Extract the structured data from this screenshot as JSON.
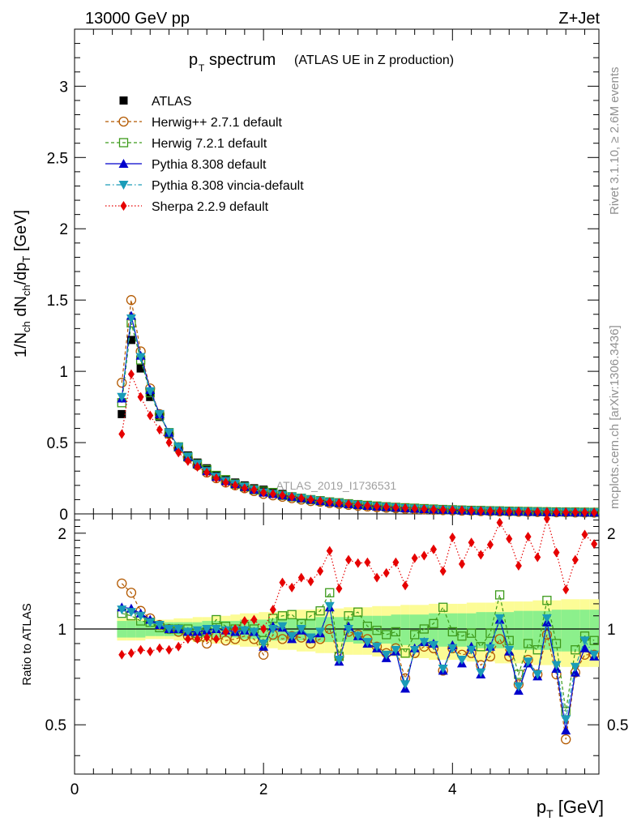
{
  "header": {
    "energy": "13000 GeV pp",
    "process": "Z+Jet"
  },
  "side": {
    "rivet": "Rivet 3.1.10, ≥ 2.6M events",
    "mcplots": "mcplots.cern.ch [arXiv:1306.3436]"
  },
  "watermark": "ATLAS_2019_I1736531",
  "colors": {
    "ATLAS": "#000000",
    "Herwig++ 2.7.1 default": "#b35900",
    "Herwig 7.2.1 default": "#3c9a1a",
    "Pythia 8.308 default": "#0000cc",
    "Pythia 8.308 vincia-default": "#1a9cb8",
    "Sherpa 2.2.9 default": "#e60000",
    "band_inner": "#8cf08c",
    "band_outer": "#fcfc96"
  },
  "chart_data": [
    {
      "type": "scatter",
      "title_main": "p",
      "title_sub": "T",
      "title_rest": "spectrum",
      "title_note": "(ATLAS UE in Z production)",
      "ylabel": "1/N_ch dN_ch/dp_T [GeV]",
      "xlim": [
        0,
        5.55
      ],
      "ylim": [
        0,
        3.4
      ],
      "yticks": [
        "0",
        "0.5",
        "1",
        "1.5",
        "2",
        "2.5",
        "3"
      ],
      "legend_position": "top-left",
      "x": [
        0.5,
        0.6,
        0.7,
        0.8,
        0.9,
        1.0,
        1.1,
        1.2,
        1.3,
        1.4,
        1.5,
        1.6,
        1.7,
        1.8,
        1.9,
        2.0,
        2.1,
        2.2,
        2.3,
        2.4,
        2.5,
        2.6,
        2.7,
        2.8,
        2.9,
        3.0,
        3.1,
        3.2,
        3.3,
        3.4,
        3.5,
        3.6,
        3.7,
        3.8,
        3.9,
        4.0,
        4.1,
        4.2,
        4.3,
        4.4,
        4.5,
        4.6,
        4.7,
        4.8,
        4.9,
        5.0,
        5.1,
        5.2,
        5.3,
        5.4,
        5.5
      ],
      "series": [
        {
          "name": "ATLAS",
          "marker": "square",
          "values": [
            0.7,
            1.22,
            1.02,
            0.82,
            0.68,
            0.56,
            0.47,
            0.41,
            0.36,
            0.32,
            0.27,
            0.24,
            0.22,
            0.2,
            0.18,
            0.17,
            0.15,
            0.14,
            0.12,
            0.11,
            0.1,
            0.095,
            0.085,
            0.08,
            0.072,
            0.065,
            0.06,
            0.055,
            0.05,
            0.047,
            0.043,
            0.04,
            0.037,
            0.034,
            0.032,
            0.03,
            0.028,
            0.026,
            0.024,
            0.023,
            0.021,
            0.02,
            0.019,
            0.018,
            0.017,
            0.016,
            0.015,
            0.014,
            0.013,
            0.012,
            0.012
          ]
        },
        {
          "name": "Herwig++ 2.7.1 default",
          "marker": "circle-open",
          "line": "dashed",
          "values": [
            0.92,
            1.5,
            1.14,
            0.88,
            0.7,
            0.56,
            0.46,
            0.39,
            0.34,
            0.29,
            0.25,
            0.22,
            0.2,
            0.18,
            0.16,
            0.14,
            0.13,
            0.12,
            0.11,
            0.1,
            0.09,
            0.085,
            0.076,
            0.07,
            0.063,
            0.057,
            0.052,
            0.047,
            0.043,
            0.04,
            0.036,
            0.033,
            0.031,
            0.028,
            0.026,
            0.024,
            0.022,
            0.021,
            0.019,
            0.018,
            0.017,
            0.016,
            0.015,
            0.014,
            0.013,
            0.012,
            0.011,
            0.011,
            0.01,
            0.009,
            0.009
          ]
        },
        {
          "name": "Herwig 7.2.1 default",
          "marker": "square-open",
          "line": "dashed",
          "values": [
            0.78,
            1.34,
            1.08,
            0.85,
            0.69,
            0.57,
            0.47,
            0.4,
            0.35,
            0.31,
            0.27,
            0.24,
            0.21,
            0.19,
            0.17,
            0.16,
            0.15,
            0.13,
            0.12,
            0.11,
            0.1,
            0.092,
            0.084,
            0.078,
            0.071,
            0.065,
            0.06,
            0.055,
            0.05,
            0.046,
            0.043,
            0.04,
            0.037,
            0.034,
            0.031,
            0.029,
            0.027,
            0.025,
            0.024,
            0.022,
            0.021,
            0.019,
            0.018,
            0.017,
            0.016,
            0.015,
            0.014,
            0.013,
            0.013,
            0.012,
            0.011
          ]
        },
        {
          "name": "Pythia 8.308 default",
          "marker": "triangle-up",
          "line": "solid",
          "values": [
            0.81,
            1.39,
            1.11,
            0.87,
            0.7,
            0.57,
            0.47,
            0.4,
            0.35,
            0.3,
            0.26,
            0.23,
            0.21,
            0.19,
            0.17,
            0.15,
            0.14,
            0.13,
            0.12,
            0.11,
            0.1,
            0.09,
            0.082,
            0.076,
            0.069,
            0.063,
            0.057,
            0.052,
            0.048,
            0.044,
            0.04,
            0.037,
            0.034,
            0.031,
            0.029,
            0.027,
            0.025,
            0.023,
            0.021,
            0.02,
            0.019,
            0.017,
            0.016,
            0.015,
            0.014,
            0.013,
            0.012,
            0.012,
            0.011,
            0.01,
            0.01
          ]
        },
        {
          "name": "Pythia 8.308 vincia-default",
          "marker": "triangle-down",
          "line": "dashdot",
          "values": [
            0.82,
            1.37,
            1.1,
            0.86,
            0.7,
            0.57,
            0.47,
            0.4,
            0.35,
            0.3,
            0.26,
            0.23,
            0.21,
            0.19,
            0.17,
            0.15,
            0.14,
            0.13,
            0.12,
            0.11,
            0.1,
            0.09,
            0.082,
            0.076,
            0.069,
            0.063,
            0.057,
            0.052,
            0.048,
            0.044,
            0.04,
            0.037,
            0.034,
            0.031,
            0.029,
            0.027,
            0.025,
            0.023,
            0.021,
            0.02,
            0.019,
            0.017,
            0.016,
            0.015,
            0.014,
            0.013,
            0.012,
            0.012,
            0.011,
            0.01,
            0.01
          ]
        },
        {
          "name": "Sherpa 2.2.9 default",
          "marker": "diamond",
          "line": "dotted",
          "values": [
            0.56,
            0.98,
            0.82,
            0.69,
            0.59,
            0.5,
            0.43,
            0.37,
            0.33,
            0.29,
            0.25,
            0.22,
            0.2,
            0.18,
            0.17,
            0.15,
            0.14,
            0.13,
            0.12,
            0.11,
            0.1,
            0.09,
            0.083,
            0.077,
            0.07,
            0.064,
            0.058,
            0.053,
            0.049,
            0.045,
            0.041,
            0.038,
            0.035,
            0.032,
            0.03,
            0.028,
            0.026,
            0.024,
            0.022,
            0.021,
            0.019,
            0.018,
            0.017,
            0.016,
            0.015,
            0.014,
            0.013,
            0.012,
            0.012,
            0.011,
            0.01
          ]
        }
      ]
    },
    {
      "type": "scatter",
      "ylabel": "Ratio to ATLAS",
      "xlabel": "p_T [GeV]",
      "xlim": [
        0,
        5.55
      ],
      "ylim": [
        0.35,
        2.3
      ],
      "xticks": [
        "0",
        "2",
        "4"
      ],
      "yticks": [
        "0.5",
        "1",
        "2"
      ],
      "x": [
        0.5,
        0.6,
        0.7,
        0.8,
        0.9,
        1.0,
        1.1,
        1.2,
        1.3,
        1.4,
        1.5,
        1.6,
        1.7,
        1.8,
        1.9,
        2.0,
        2.1,
        2.2,
        2.3,
        2.4,
        2.5,
        2.6,
        2.7,
        2.8,
        2.9,
        3.0,
        3.1,
        3.2,
        3.3,
        3.4,
        3.5,
        3.6,
        3.7,
        3.8,
        3.9,
        4.0,
        4.1,
        4.2,
        4.3,
        4.4,
        4.5,
        4.6,
        4.7,
        4.8,
        4.9,
        5.0,
        5.1,
        5.2,
        5.3,
        5.4,
        5.5
      ],
      "band_inner": [
        0.06,
        0.06,
        0.06,
        0.05,
        0.05,
        0.05,
        0.05,
        0.05,
        0.05,
        0.06,
        0.06,
        0.06,
        0.06,
        0.07,
        0.07,
        0.07,
        0.08,
        0.08,
        0.08,
        0.08,
        0.08,
        0.09,
        0.09,
        0.09,
        0.09,
        0.1,
        0.1,
        0.1,
        0.1,
        0.11,
        0.11,
        0.11,
        0.11,
        0.12,
        0.12,
        0.12,
        0.12,
        0.12,
        0.13,
        0.13,
        0.13,
        0.13,
        0.14,
        0.14,
        0.14,
        0.14,
        0.15,
        0.15,
        0.15,
        0.15,
        0.15
      ],
      "band_outer": [
        0.08,
        0.08,
        0.08,
        0.07,
        0.07,
        0.07,
        0.08,
        0.08,
        0.09,
        0.09,
        0.1,
        0.1,
        0.11,
        0.12,
        0.12,
        0.13,
        0.13,
        0.14,
        0.14,
        0.15,
        0.15,
        0.16,
        0.16,
        0.16,
        0.17,
        0.17,
        0.17,
        0.18,
        0.18,
        0.18,
        0.19,
        0.19,
        0.19,
        0.2,
        0.2,
        0.2,
        0.2,
        0.21,
        0.21,
        0.21,
        0.22,
        0.22,
        0.22,
        0.22,
        0.23,
        0.23,
        0.23,
        0.24,
        0.24,
        0.24,
        0.24
      ],
      "series": [
        {
          "name": "Herwig++ 2.7.1 default",
          "values": [
            1.39,
            1.3,
            1.14,
            1.08,
            1.03,
            1.0,
            0.98,
            0.95,
            0.94,
            0.9,
            0.95,
            0.92,
            0.93,
            0.95,
            0.93,
            0.83,
            0.96,
            0.93,
            0.95,
            0.94,
            0.9,
            0.93,
            1.0,
            0.82,
            0.98,
            0.96,
            0.93,
            0.88,
            0.84,
            0.87,
            0.7,
            0.84,
            0.88,
            0.87,
            0.74,
            0.87,
            0.83,
            0.84,
            0.77,
            0.82,
            0.93,
            0.82,
            0.67,
            0.8,
            0.72,
            0.96,
            0.72,
            0.45,
            0.73,
            0.83,
            0.83
          ]
        },
        {
          "name": "Herwig 7.2.1 default",
          "values": [
            1.12,
            1.1,
            1.06,
            1.05,
            1.01,
            1.0,
            1.0,
            1.0,
            0.97,
            0.98,
            1.07,
            1.02,
            1.0,
            1.02,
            1.0,
            0.92,
            1.08,
            1.1,
            1.11,
            1.04,
            1.1,
            1.14,
            1.3,
            0.82,
            1.1,
            1.13,
            1.02,
            0.99,
            0.96,
            0.98,
            0.84,
            0.96,
            1.0,
            1.04,
            1.17,
            0.98,
            0.95,
            0.97,
            0.88,
            0.97,
            1.28,
            0.92,
            0.72,
            0.9,
            0.86,
            1.23,
            0.9,
            0.55,
            0.86,
            0.95,
            0.92
          ]
        },
        {
          "name": "Pythia 8.308 default",
          "values": [
            1.17,
            1.16,
            1.12,
            1.07,
            1.03,
            1.0,
            1.0,
            0.98,
            0.98,
            0.99,
            1.0,
            0.99,
            0.98,
            0.99,
            0.98,
            0.88,
            1.02,
            1.01,
            0.93,
            0.99,
            0.93,
            0.97,
            1.17,
            0.79,
            1.02,
            0.95,
            0.9,
            0.87,
            0.81,
            0.85,
            0.65,
            0.87,
            0.91,
            0.9,
            0.74,
            0.89,
            0.78,
            0.88,
            0.72,
            0.88,
            1.07,
            0.85,
            0.64,
            0.78,
            0.71,
            1.05,
            0.75,
            0.48,
            0.73,
            0.87,
            0.82
          ]
        },
        {
          "name": "Pythia 8.308 vincia-default",
          "values": [
            1.15,
            1.13,
            1.1,
            1.05,
            1.03,
            1.0,
            1.0,
            0.98,
            0.99,
            1.0,
            1.0,
            0.99,
            0.99,
            0.99,
            0.98,
            0.9,
            1.0,
            1.02,
            0.95,
            1.0,
            0.94,
            0.98,
            1.18,
            0.8,
            1.0,
            0.95,
            0.91,
            0.88,
            0.83,
            0.86,
            0.67,
            0.86,
            0.91,
            0.89,
            0.75,
            0.87,
            0.8,
            0.86,
            0.73,
            0.87,
            1.08,
            0.86,
            0.66,
            0.79,
            0.72,
            1.08,
            0.77,
            0.52,
            0.76,
            0.92,
            0.83
          ]
        },
        {
          "name": "Sherpa 2.2.9 default",
          "values": [
            0.83,
            0.84,
            0.86,
            0.85,
            0.87,
            0.86,
            0.88,
            0.93,
            0.93,
            0.94,
            0.93,
            0.98,
            1.0,
            1.06,
            1.07,
            1.0,
            1.15,
            1.4,
            1.35,
            1.45,
            1.41,
            1.52,
            1.76,
            1.34,
            1.65,
            1.61,
            1.62,
            1.45,
            1.5,
            1.62,
            1.37,
            1.67,
            1.7,
            1.78,
            1.52,
            1.94,
            1.6,
            1.87,
            1.71,
            1.84,
            2.16,
            1.92,
            1.58,
            1.95,
            1.68,
            2.22,
            1.74,
            1.33,
            1.65,
            1.98,
            1.85
          ]
        }
      ]
    }
  ]
}
